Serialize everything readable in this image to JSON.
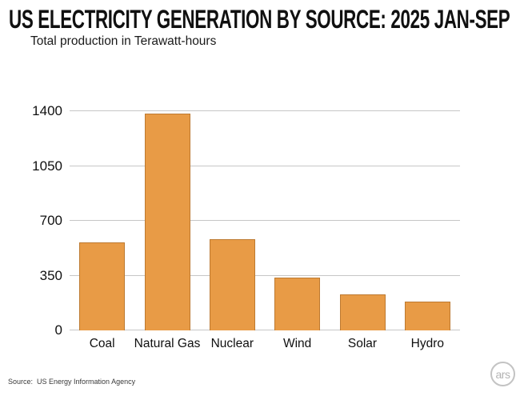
{
  "header": {
    "title": "US ELECTRICITY GENERATION BY SOURCE: 2025 JAN-SEP",
    "subtitle": "Total production in Terawatt-hours"
  },
  "chart_data": {
    "type": "bar",
    "title": "US Electricity Generation by Source: 2025 Jan-Sep",
    "subtitle": "Total production in Terawatt-hours",
    "categories": [
      "Coal",
      "Natural Gas",
      "Nuclear",
      "Wind",
      "Solar",
      "Hydro"
    ],
    "values": [
      560,
      1385,
      585,
      335,
      230,
      185
    ],
    "unit": "Terawatt-hours",
    "xlabel": "",
    "ylabel": "",
    "ylim": [
      0,
      1400
    ],
    "yticks": [
      0,
      350,
      700,
      1050,
      1400
    ],
    "grid": true,
    "legend": false,
    "bar_color": "#e89b46",
    "bar_border_color": "#bd7a31",
    "gridline_color": "#c6c6c6"
  },
  "footer": {
    "source_label": "Source:  US Energy Information Agency",
    "logo_text": "ars"
  }
}
